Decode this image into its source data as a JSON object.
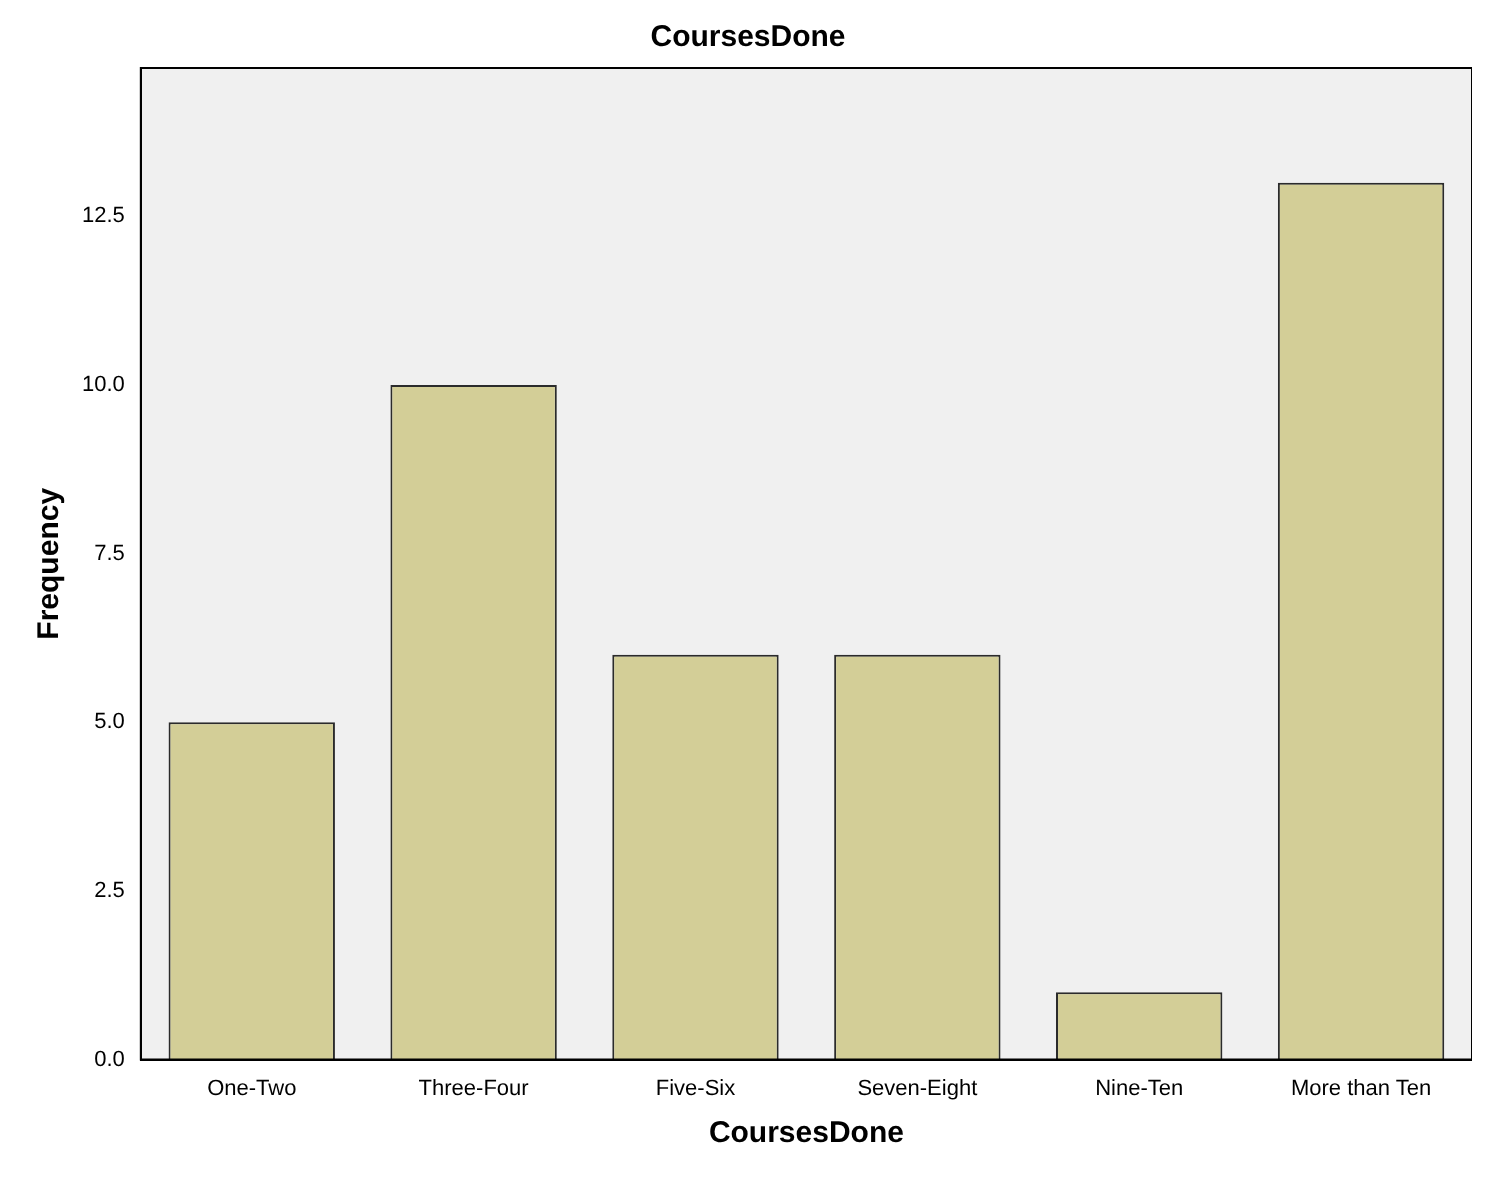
{
  "chart_data": {
    "type": "bar",
    "title": "CoursesDone",
    "xlabel": "CoursesDone",
    "ylabel": "Frequency",
    "categories": [
      "One-Two",
      "Three-Four",
      "Five-Six",
      "Seven-Eight",
      "Nine-Ten",
      "More than Ten"
    ],
    "values": [
      5,
      10,
      6,
      6,
      1,
      13
    ],
    "color": "#d3ce97",
    "ylim": [
      0,
      14.7
    ],
    "yticks": [
      {
        "value": 0,
        "label": "0.0"
      },
      {
        "value": 2.5,
        "label": "2.5"
      },
      {
        "value": 5,
        "label": "5.0"
      },
      {
        "value": 7.5,
        "label": "7.5"
      },
      {
        "value": 10,
        "label": "10.0"
      },
      {
        "value": 12.5,
        "label": "12.5"
      }
    ],
    "grid": false,
    "legend": false
  }
}
